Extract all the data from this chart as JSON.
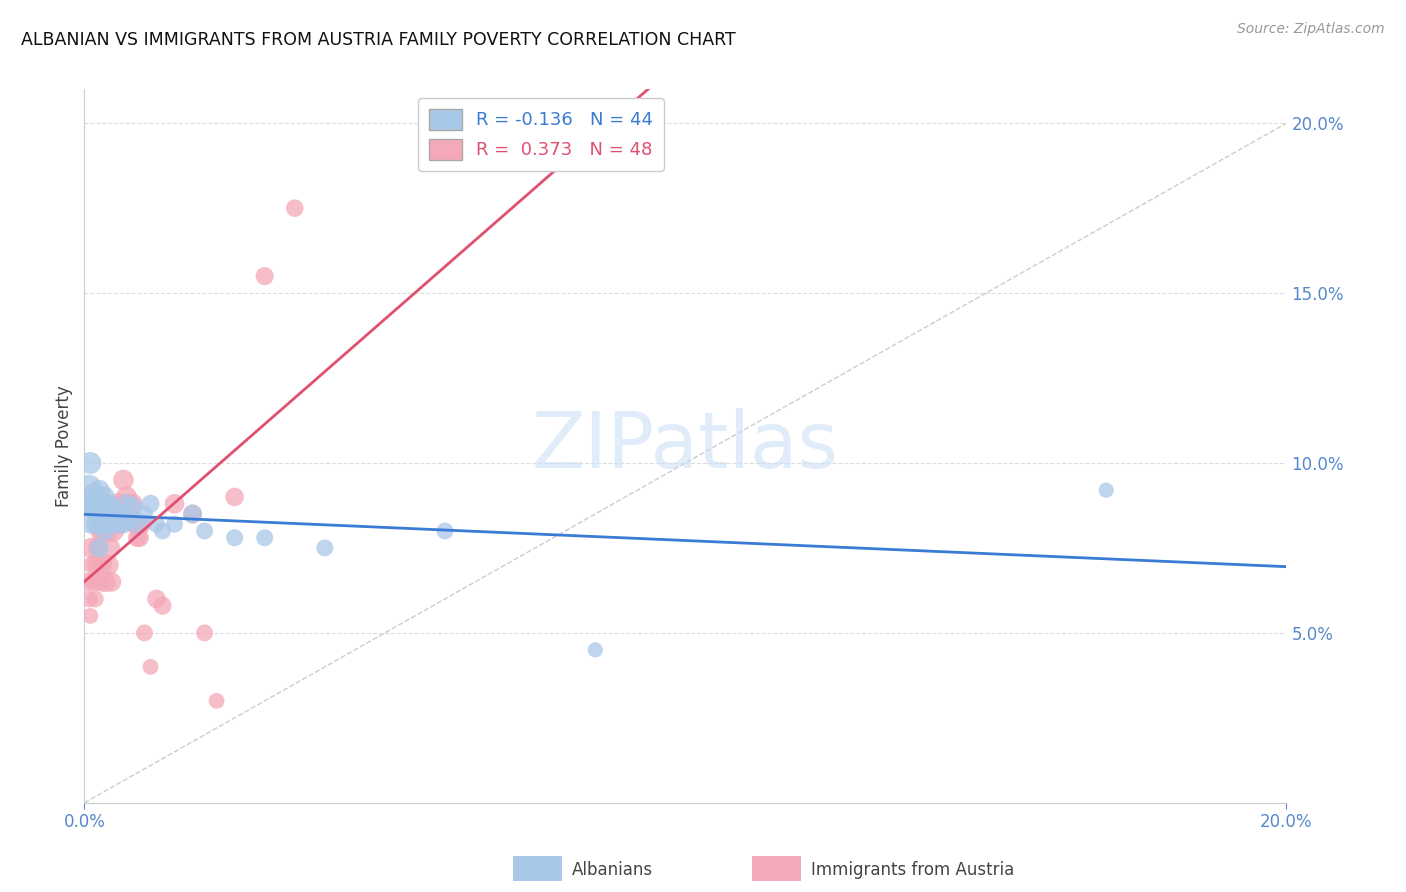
{
  "title": "ALBANIAN VS IMMIGRANTS FROM AUSTRIA FAMILY POVERTY CORRELATION CHART",
  "source": "Source: ZipAtlas.com",
  "ylabel": "Family Poverty",
  "xlim": [
    0.0,
    0.2
  ],
  "ylim": [
    0.0,
    0.21
  ],
  "watermark_text": "ZIPatlas",
  "legend_alb_R": "-0.136",
  "legend_alb_N": "44",
  "legend_aut_R": "0.373",
  "legend_aut_N": "48",
  "albanian_line_color": "#3a7bd5",
  "austria_line_color": "#e05070",
  "albanian_scatter_color": "#a8c8e8",
  "austria_scatter_color": "#f4a8b8",
  "diagonal_line_color": "#cccccc",
  "grid_color": "#dddddd",
  "albanians_x": [
    0.0005,
    0.0008,
    0.001,
    0.0012,
    0.0015,
    0.0015,
    0.0018,
    0.002,
    0.002,
    0.0022,
    0.0025,
    0.0025,
    0.0028,
    0.003,
    0.003,
    0.0032,
    0.0035,
    0.0035,
    0.0038,
    0.004,
    0.0042,
    0.0045,
    0.0048,
    0.005,
    0.0055,
    0.006,
    0.0065,
    0.007,
    0.0075,
    0.008,
    0.009,
    0.01,
    0.011,
    0.012,
    0.013,
    0.015,
    0.018,
    0.02,
    0.025,
    0.03,
    0.04,
    0.06,
    0.085,
    0.17
  ],
  "albanians_y": [
    0.088,
    0.093,
    0.1,
    0.083,
    0.087,
    0.091,
    0.082,
    0.089,
    0.086,
    0.082,
    0.092,
    0.075,
    0.085,
    0.088,
    0.082,
    0.09,
    0.085,
    0.08,
    0.085,
    0.088,
    0.082,
    0.087,
    0.083,
    0.085,
    0.082,
    0.085,
    0.082,
    0.088,
    0.083,
    0.087,
    0.082,
    0.085,
    0.088,
    0.082,
    0.08,
    0.082,
    0.085,
    0.08,
    0.078,
    0.078,
    0.075,
    0.08,
    0.045,
    0.092
  ],
  "albanians_size": [
    200,
    300,
    250,
    350,
    280,
    220,
    180,
    250,
    200,
    170,
    220,
    180,
    220,
    250,
    200,
    250,
    200,
    180,
    200,
    200,
    170,
    200,
    170,
    200,
    180,
    180,
    180,
    200,
    170,
    200,
    180,
    150,
    170,
    150,
    150,
    150,
    180,
    150,
    150,
    150,
    150,
    150,
    120,
    120
  ],
  "austria_x": [
    0.0005,
    0.0008,
    0.001,
    0.0012,
    0.0015,
    0.0015,
    0.0018,
    0.002,
    0.0022,
    0.0025,
    0.0028,
    0.003,
    0.0032,
    0.0035,
    0.0038,
    0.004,
    0.0042,
    0.0045,
    0.0048,
    0.005,
    0.0055,
    0.0058,
    0.006,
    0.0062,
    0.0065,
    0.0068,
    0.007,
    0.0072,
    0.0075,
    0.0078,
    0.008,
    0.0082,
    0.0085,
    0.0088,
    0.009,
    0.0092,
    0.0095,
    0.01,
    0.011,
    0.012,
    0.013,
    0.015,
    0.018,
    0.02,
    0.022,
    0.025,
    0.03,
    0.035
  ],
  "austria_y": [
    0.065,
    0.06,
    0.055,
    0.075,
    0.07,
    0.065,
    0.06,
    0.07,
    0.075,
    0.065,
    0.08,
    0.07,
    0.08,
    0.065,
    0.08,
    0.07,
    0.075,
    0.065,
    0.08,
    0.083,
    0.088,
    0.082,
    0.087,
    0.083,
    0.095,
    0.088,
    0.09,
    0.083,
    0.088,
    0.083,
    0.088,
    0.083,
    0.082,
    0.078,
    0.082,
    0.078,
    0.082,
    0.05,
    0.04,
    0.06,
    0.058,
    0.088,
    0.085,
    0.05,
    0.03,
    0.09,
    0.155,
    0.175
  ],
  "austria_size": [
    170,
    150,
    130,
    220,
    200,
    170,
    150,
    200,
    200,
    180,
    240,
    200,
    250,
    220,
    240,
    220,
    230,
    200,
    240,
    220,
    230,
    200,
    220,
    200,
    220,
    200,
    230,
    200,
    220,
    200,
    220,
    200,
    200,
    180,
    200,
    180,
    200,
    150,
    130,
    180,
    170,
    200,
    190,
    150,
    130,
    180,
    170,
    160
  ]
}
